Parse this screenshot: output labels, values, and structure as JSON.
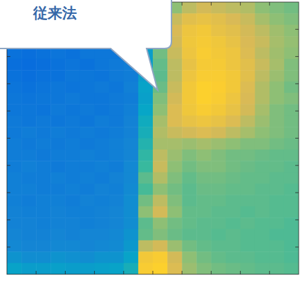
{
  "chart_data": {
    "type": "heatmap",
    "annotation": "従来法",
    "xlim": [
      0,
      100
    ],
    "ylim": [
      0,
      100
    ],
    "xticks": [
      10,
      20,
      30,
      40,
      50,
      60,
      70,
      80,
      90
    ],
    "yticks": [
      10,
      20,
      30,
      40,
      50,
      60,
      70,
      80,
      90
    ],
    "tick_labels": false,
    "zlim": [
      0,
      1
    ],
    "cells": [
      [
        0.22,
        0.2,
        0.21,
        0.19,
        0.22,
        0.2,
        0.21,
        0.2,
        0.22,
        0.4,
        0.55,
        0.62,
        0.7,
        0.74,
        0.72,
        0.7,
        0.68,
        0.62,
        0.6,
        0.58
      ],
      [
        0.2,
        0.19,
        0.2,
        0.21,
        0.2,
        0.19,
        0.2,
        0.21,
        0.23,
        0.38,
        0.6,
        0.72,
        0.78,
        0.8,
        0.78,
        0.75,
        0.72,
        0.66,
        0.62,
        0.6
      ],
      [
        0.2,
        0.21,
        0.19,
        0.2,
        0.2,
        0.2,
        0.22,
        0.2,
        0.22,
        0.36,
        0.62,
        0.75,
        0.82,
        0.84,
        0.8,
        0.78,
        0.74,
        0.7,
        0.65,
        0.62
      ],
      [
        0.19,
        0.2,
        0.2,
        0.18,
        0.19,
        0.21,
        0.2,
        0.21,
        0.22,
        0.35,
        0.6,
        0.74,
        0.83,
        0.85,
        0.83,
        0.8,
        0.75,
        0.72,
        0.66,
        0.63
      ],
      [
        0.18,
        0.17,
        0.18,
        0.19,
        0.18,
        0.2,
        0.2,
        0.2,
        0.21,
        0.34,
        0.58,
        0.72,
        0.82,
        0.86,
        0.84,
        0.82,
        0.76,
        0.7,
        0.65,
        0.62
      ],
      [
        0.17,
        0.16,
        0.17,
        0.18,
        0.19,
        0.18,
        0.2,
        0.21,
        0.22,
        0.33,
        0.56,
        0.7,
        0.8,
        0.85,
        0.85,
        0.82,
        0.78,
        0.72,
        0.66,
        0.6
      ],
      [
        0.18,
        0.17,
        0.18,
        0.18,
        0.2,
        0.2,
        0.19,
        0.21,
        0.22,
        0.34,
        0.55,
        0.7,
        0.82,
        0.86,
        0.86,
        0.84,
        0.78,
        0.7,
        0.64,
        0.6
      ],
      [
        0.19,
        0.18,
        0.19,
        0.2,
        0.19,
        0.2,
        0.21,
        0.2,
        0.23,
        0.36,
        0.57,
        0.72,
        0.84,
        0.88,
        0.87,
        0.84,
        0.76,
        0.68,
        0.62,
        0.58
      ],
      [
        0.2,
        0.19,
        0.2,
        0.2,
        0.21,
        0.2,
        0.2,
        0.21,
        0.22,
        0.35,
        0.6,
        0.74,
        0.84,
        0.88,
        0.86,
        0.82,
        0.75,
        0.68,
        0.62,
        0.6
      ],
      [
        0.2,
        0.2,
        0.19,
        0.21,
        0.2,
        0.21,
        0.2,
        0.21,
        0.23,
        0.37,
        0.62,
        0.76,
        0.83,
        0.86,
        0.84,
        0.8,
        0.74,
        0.66,
        0.6,
        0.58
      ],
      [
        0.21,
        0.2,
        0.21,
        0.2,
        0.21,
        0.2,
        0.22,
        0.21,
        0.24,
        0.4,
        0.66,
        0.76,
        0.8,
        0.82,
        0.8,
        0.76,
        0.7,
        0.64,
        0.6,
        0.58
      ],
      [
        0.21,
        0.22,
        0.21,
        0.22,
        0.21,
        0.22,
        0.21,
        0.22,
        0.24,
        0.42,
        0.68,
        0.72,
        0.74,
        0.76,
        0.74,
        0.7,
        0.66,
        0.62,
        0.6,
        0.58
      ],
      [
        0.22,
        0.21,
        0.22,
        0.21,
        0.22,
        0.21,
        0.22,
        0.23,
        0.25,
        0.45,
        0.66,
        0.66,
        0.64,
        0.66,
        0.64,
        0.62,
        0.6,
        0.6,
        0.58,
        0.57
      ],
      [
        0.22,
        0.22,
        0.21,
        0.22,
        0.22,
        0.23,
        0.22,
        0.23,
        0.25,
        0.48,
        0.7,
        0.64,
        0.6,
        0.62,
        0.6,
        0.58,
        0.58,
        0.57,
        0.56,
        0.56
      ],
      [
        0.22,
        0.23,
        0.22,
        0.21,
        0.22,
        0.22,
        0.23,
        0.22,
        0.26,
        0.5,
        0.72,
        0.62,
        0.58,
        0.6,
        0.6,
        0.58,
        0.57,
        0.56,
        0.56,
        0.55
      ],
      [
        0.23,
        0.22,
        0.22,
        0.23,
        0.22,
        0.23,
        0.22,
        0.24,
        0.26,
        0.55,
        0.68,
        0.6,
        0.56,
        0.58,
        0.58,
        0.57,
        0.56,
        0.56,
        0.55,
        0.55
      ],
      [
        0.23,
        0.23,
        0.22,
        0.22,
        0.23,
        0.22,
        0.24,
        0.23,
        0.27,
        0.52,
        0.62,
        0.58,
        0.55,
        0.57,
        0.57,
        0.56,
        0.56,
        0.55,
        0.55,
        0.54
      ],
      [
        0.23,
        0.22,
        0.23,
        0.23,
        0.22,
        0.24,
        0.23,
        0.24,
        0.28,
        0.58,
        0.7,
        0.6,
        0.55,
        0.56,
        0.56,
        0.55,
        0.55,
        0.55,
        0.54,
        0.54
      ],
      [
        0.24,
        0.23,
        0.23,
        0.24,
        0.23,
        0.23,
        0.24,
        0.25,
        0.28,
        0.62,
        0.74,
        0.62,
        0.56,
        0.56,
        0.55,
        0.55,
        0.54,
        0.55,
        0.54,
        0.54
      ],
      [
        0.24,
        0.24,
        0.23,
        0.24,
        0.24,
        0.23,
        0.24,
        0.25,
        0.28,
        0.55,
        0.62,
        0.58,
        0.56,
        0.55,
        0.55,
        0.54,
        0.55,
        0.54,
        0.54,
        0.53
      ],
      [
        0.25,
        0.24,
        0.24,
        0.25,
        0.24,
        0.25,
        0.25,
        0.26,
        0.3,
        0.56,
        0.6,
        0.57,
        0.55,
        0.55,
        0.54,
        0.55,
        0.54,
        0.54,
        0.53,
        0.53
      ],
      [
        0.26,
        0.25,
        0.25,
        0.26,
        0.26,
        0.25,
        0.26,
        0.27,
        0.32,
        0.7,
        0.74,
        0.64,
        0.58,
        0.56,
        0.55,
        0.55,
        0.54,
        0.54,
        0.54,
        0.53
      ],
      [
        0.3,
        0.28,
        0.28,
        0.3,
        0.29,
        0.28,
        0.3,
        0.3,
        0.36,
        0.84,
        0.86,
        0.74,
        0.62,
        0.58,
        0.56,
        0.55,
        0.55,
        0.54,
        0.54,
        0.53
      ],
      [
        0.36,
        0.34,
        0.34,
        0.35,
        0.34,
        0.34,
        0.35,
        0.36,
        0.42,
        0.86,
        0.88,
        0.76,
        0.64,
        0.6,
        0.58,
        0.57,
        0.56,
        0.55,
        0.55,
        0.54
      ]
    ]
  }
}
